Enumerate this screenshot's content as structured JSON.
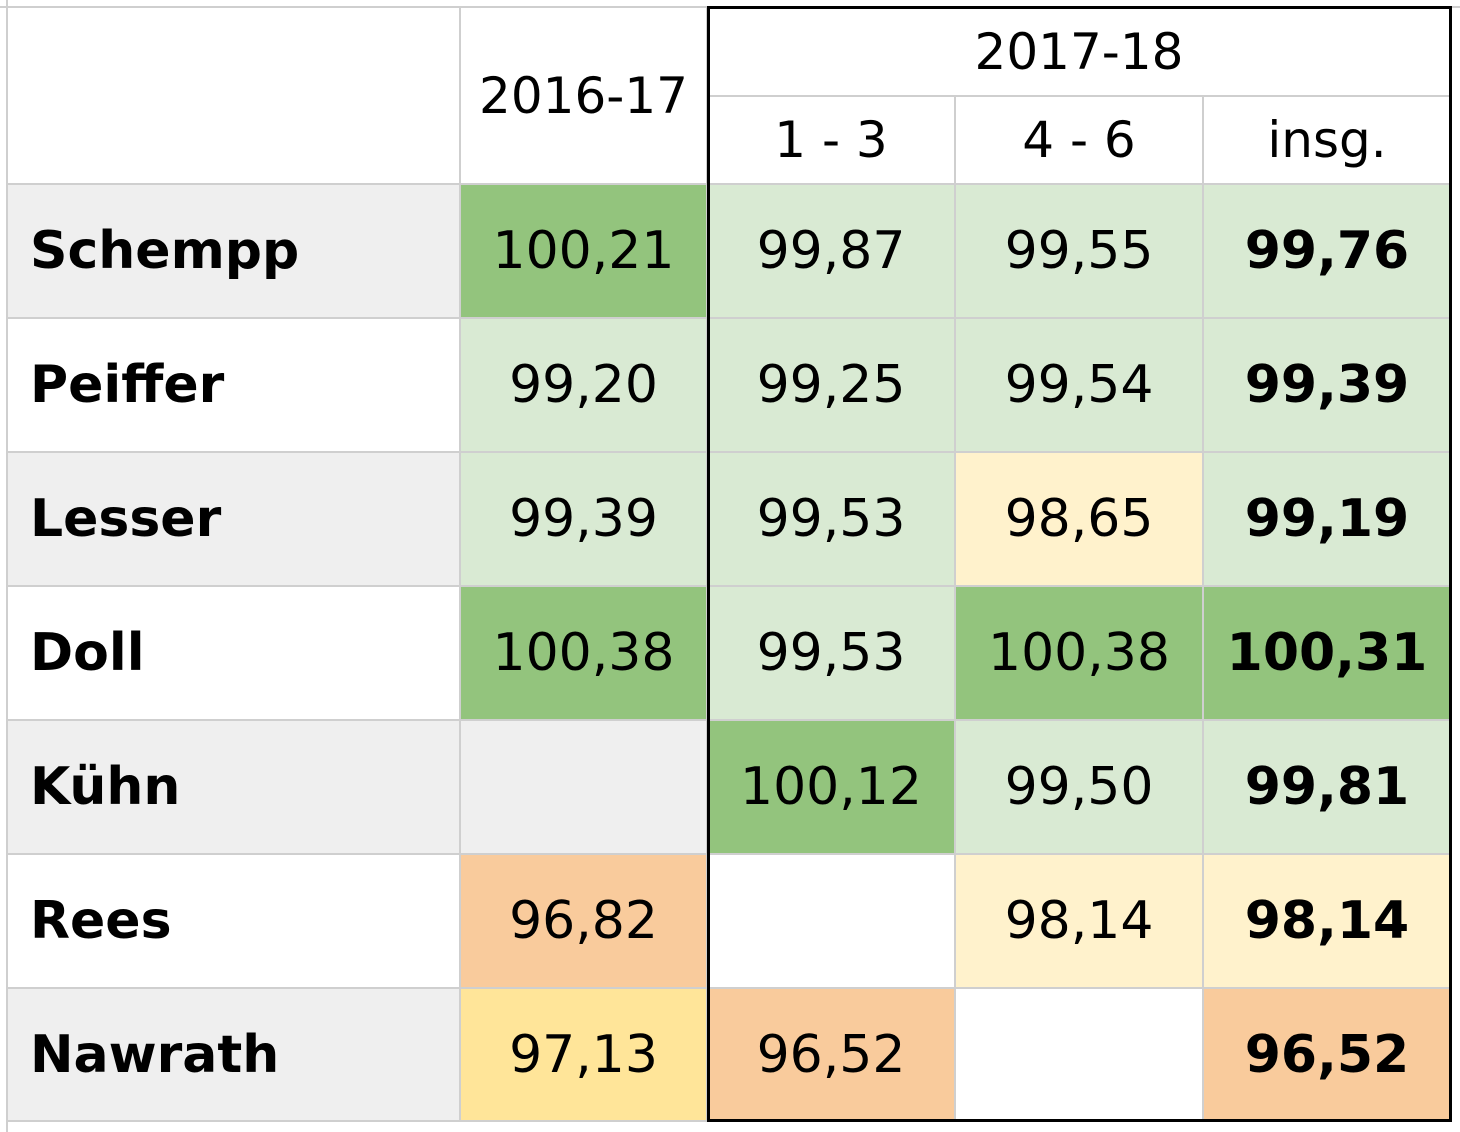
{
  "header": {
    "season_a": "2016-17",
    "season_b": "2017-18",
    "sub": [
      "1 - 3",
      "4 - 6",
      "insg."
    ]
  },
  "colors": {
    "dark_green": "#93c47d",
    "light_green": "#d9ead3",
    "light_yellow": "#fff2cc",
    "yellow": "#ffe599",
    "orange": "#f9cb9c",
    "gray": "#efefef",
    "white": "#ffffff"
  },
  "rows": [
    {
      "name": "Schempp",
      "cells": [
        "100,21",
        "99,87",
        "99,55",
        "99,76"
      ],
      "fills": [
        "dark_green",
        "light_green",
        "light_green",
        "light_green"
      ]
    },
    {
      "name": "Peiffer",
      "cells": [
        "99,20",
        "99,25",
        "99,54",
        "99,39"
      ],
      "fills": [
        "light_green",
        "light_green",
        "light_green",
        "light_green"
      ]
    },
    {
      "name": "Lesser",
      "cells": [
        "99,39",
        "99,53",
        "98,65",
        "99,19"
      ],
      "fills": [
        "light_green",
        "light_green",
        "light_yellow",
        "light_green"
      ]
    },
    {
      "name": "Doll",
      "cells": [
        "100,38",
        "99,53",
        "100,38",
        "100,31"
      ],
      "fills": [
        "dark_green",
        "light_green",
        "dark_green",
        "dark_green"
      ]
    },
    {
      "name": "Kühn",
      "cells": [
        "",
        "100,12",
        "99,50",
        "99,81"
      ],
      "fills": [
        "gray",
        "dark_green",
        "light_green",
        "light_green"
      ]
    },
    {
      "name": "Rees",
      "cells": [
        "96,82",
        "",
        "98,14",
        "98,14"
      ],
      "fills": [
        "orange",
        "white",
        "light_yellow",
        "light_yellow"
      ]
    },
    {
      "name": "Nawrath",
      "cells": [
        "97,13",
        "96,52",
        "",
        "96,52"
      ],
      "fills": [
        "yellow",
        "orange",
        "white",
        "orange"
      ]
    }
  ]
}
